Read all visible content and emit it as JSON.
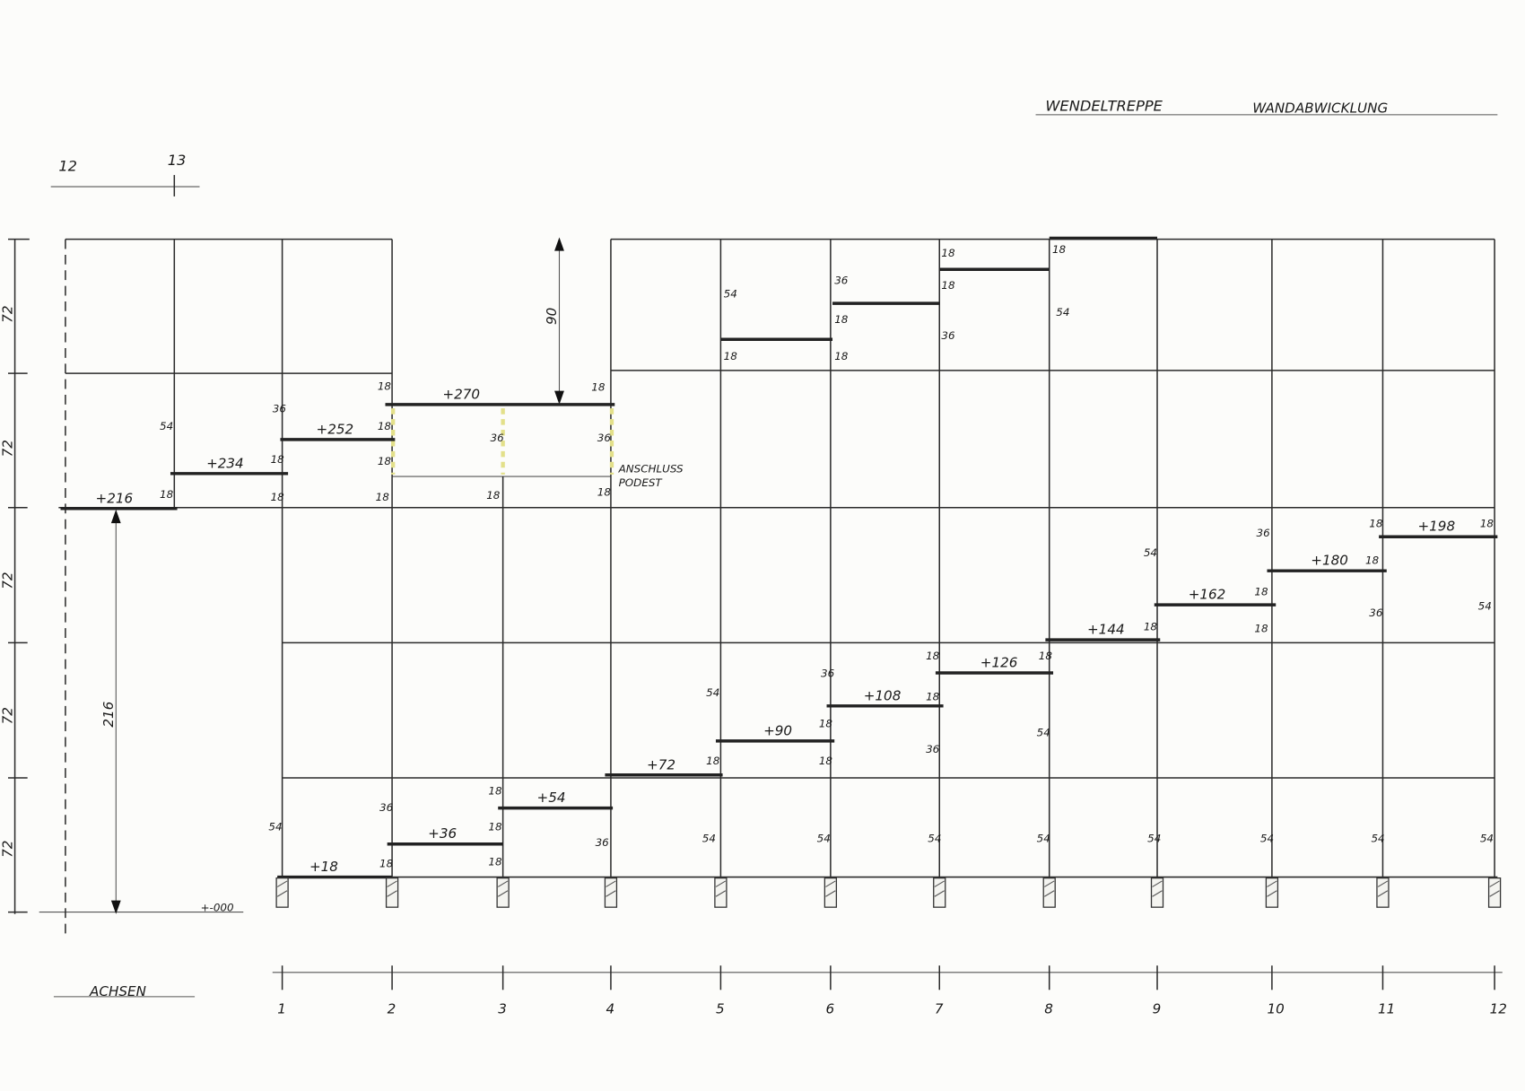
{
  "title": {
    "part1": "WENDELTREPPE",
    "part2": "WANDABWICKLUNG"
  },
  "top_axes": [
    "12",
    "13"
  ],
  "axes_label": "ACHSEN",
  "axes": [
    "1",
    "2",
    "3",
    "4",
    "5",
    "6",
    "7",
    "8",
    "9",
    "10",
    "11",
    "12"
  ],
  "left_dimensions": [
    "72",
    "72",
    "72",
    "72",
    "72"
  ],
  "dimension_216": "216",
  "dimension_90": "90",
  "zero_level": "+-000",
  "landing_note": [
    "ANSCHLUSS",
    "PODEST"
  ],
  "tread_levels": [
    "+18",
    "+36",
    "+54",
    "+72",
    "+90",
    "+108",
    "+126",
    "+144",
    "+162",
    "+180",
    "+198",
    "+216",
    "+234",
    "+252",
    "+270"
  ],
  "small_labels": [
    "18",
    "54",
    "36",
    "18",
    "18",
    "18",
    "18",
    "18",
    "18",
    "36",
    "18",
    "18",
    "36",
    "18",
    "54",
    "18",
    "36",
    "18",
    "18",
    "18",
    "18",
    "36",
    "18",
    "54",
    "54",
    "36",
    "18",
    "18",
    "18",
    "18",
    "36",
    "54",
    "54",
    "18",
    "18",
    "18",
    "36",
    "54",
    "18",
    "18",
    "36",
    "54",
    "18",
    "54",
    "54",
    "18",
    "54",
    "54",
    "18",
    "18",
    "36",
    "54",
    "18",
    "18",
    "36",
    "54",
    "18",
    "54",
    "54"
  ],
  "colors": {
    "ink": "#1a1a1a",
    "highlight": "#e3e08a",
    "paper": "#fcfcfa"
  }
}
